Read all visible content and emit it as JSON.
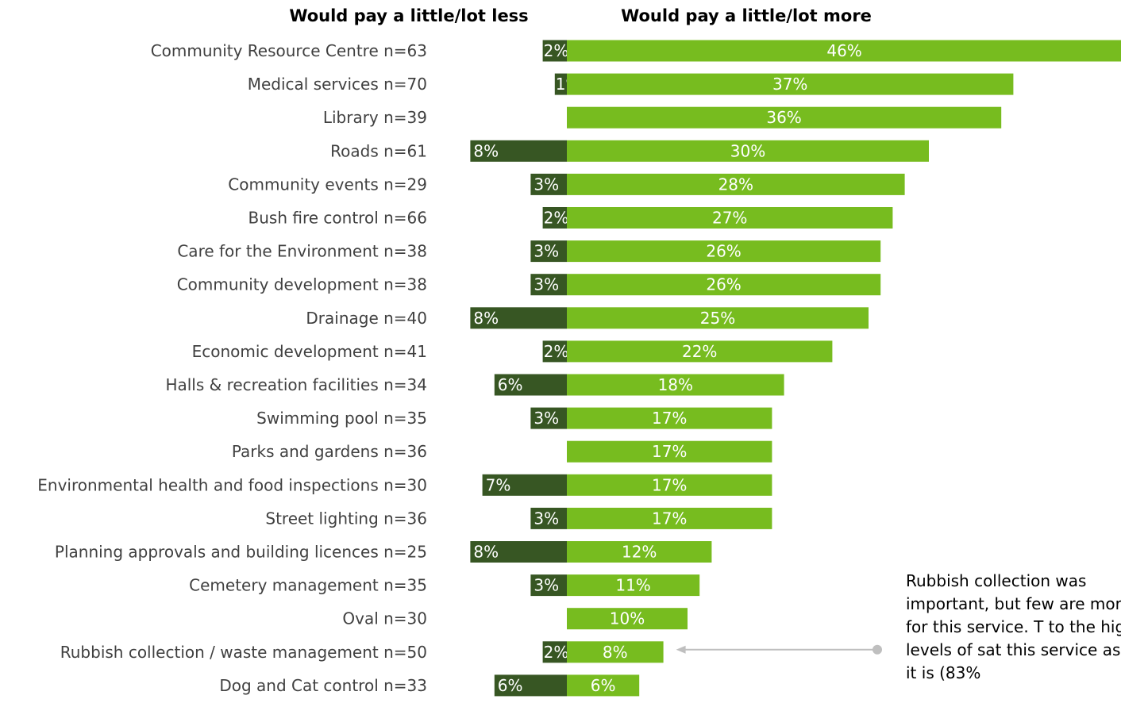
{
  "headers": {
    "less": "Would pay a little/lot less",
    "more": "Would pay a little/lot more"
  },
  "colors": {
    "less": "#375623",
    "more": "#77bc1f",
    "connector": "#bfbfbf"
  },
  "note": "Rubbish collection was important, but few are more for this service. T to the high levels of sat this service as it is (83%",
  "chart_data": {
    "type": "bar",
    "orientation": "horizontal",
    "diverging": true,
    "categories": [
      "Community Resource Centre n=63",
      "Medical services n=70",
      "Library n=39",
      "Roads n=61",
      "Community events n=29",
      "Bush fire control n=66",
      "Care for the Environment n=38",
      "Community development n=38",
      "Drainage n=40",
      "Economic development n=41",
      "Halls & recreation facilities n=34",
      "Swimming pool n=35",
      "Parks and gardens n=36",
      "Environmental health and food inspections n=30",
      "Street lighting n=36",
      "Planning approvals and building licences n=25",
      "Cemetery management n=35",
      "Oval n=30",
      "Rubbish collection / waste management n=50",
      "Dog and Cat control n=33"
    ],
    "series": [
      {
        "name": "Would pay a little/lot less",
        "values": [
          2,
          1,
          null,
          8,
          3,
          2,
          3,
          3,
          8,
          2,
          6,
          3,
          null,
          7,
          3,
          8,
          3,
          null,
          2,
          6
        ],
        "labels": [
          "2%",
          "1%",
          "",
          "8%",
          "3%",
          "2%",
          "3%",
          "3%",
          "8%",
          "2%",
          "6%",
          "3%",
          "",
          "7%",
          "3%",
          "8%",
          "3%",
          "",
          "2%",
          "6%"
        ]
      },
      {
        "name": "Would pay a little/lot more",
        "values": [
          46,
          37,
          36,
          30,
          28,
          27,
          26,
          26,
          25,
          22,
          18,
          17,
          17,
          17,
          17,
          12,
          11,
          10,
          8,
          6
        ],
        "labels": [
          "46%",
          "37%",
          "36%",
          "30%",
          "28%",
          "27%",
          "26%",
          "26%",
          "25%",
          "22%",
          "18%",
          "17%",
          "17%",
          "17%",
          "17%",
          "12%",
          "11%",
          "10%",
          "8%",
          "6%"
        ]
      }
    ],
    "highlight_category": "Rubbish collection / waste management n=50"
  }
}
